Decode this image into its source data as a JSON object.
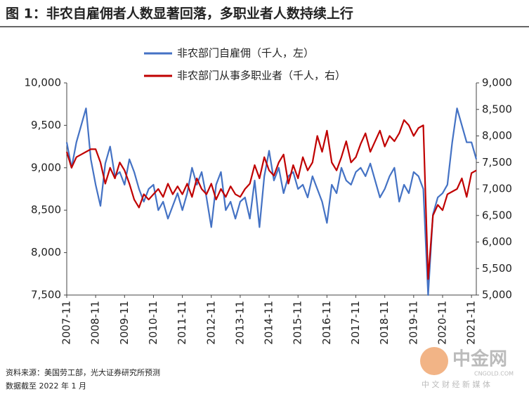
{
  "chart_data": {
    "type": "line",
    "title": "图 1：非农自雇佣者人数显著回落，多职业者人数持续上行",
    "source": "资料来源：美国劳工部，光大证券研究所预测",
    "note": "数据截至 2022 年 1 月",
    "watermark": "中金网",
    "watermark_sub": "CNGOLD.COM",
    "watermark_tag": "中 文 财 经 新 媒 体",
    "categories": [
      "2007-11",
      null,
      null,
      null,
      null,
      null,
      "2008-11",
      null,
      null,
      null,
      null,
      null,
      "2009-11",
      null,
      null,
      null,
      null,
      null,
      "2010-11",
      null,
      null,
      null,
      null,
      null,
      "2011-11",
      null,
      null,
      null,
      null,
      null,
      "2012-11",
      null,
      null,
      null,
      null,
      null,
      "2013-11",
      null,
      null,
      null,
      null,
      null,
      "2014-11",
      null,
      null,
      null,
      null,
      null,
      "2015-11",
      null,
      null,
      null,
      null,
      null,
      "2016-11",
      null,
      null,
      null,
      null,
      null,
      "2017-11",
      null,
      null,
      null,
      null,
      null,
      "2018-11",
      null,
      null,
      null,
      null,
      null,
      "2019-11",
      null,
      null,
      null,
      null,
      null,
      "2020-11",
      null,
      null,
      null,
      null,
      null,
      "2021-11",
      null
    ],
    "series": [
      {
        "name": "非农部门自雇佣（千人，左）",
        "color": "#4472c4",
        "axis": "y",
        "values": [
          9300,
          9000,
          9300,
          9500,
          9700,
          9100,
          8800,
          8550,
          9050,
          9250,
          8900,
          8950,
          8800,
          9100,
          8950,
          8750,
          8600,
          8750,
          8800,
          8500,
          8600,
          8400,
          8550,
          8700,
          8500,
          8700,
          9000,
          8800,
          8950,
          8650,
          8300,
          8800,
          8950,
          8500,
          8600,
          8400,
          8600,
          8650,
          8400,
          8850,
          8300,
          8900,
          9200,
          8850,
          9000,
          8700,
          8900,
          8950,
          8750,
          8800,
          8650,
          8900,
          8750,
          8600,
          8350,
          8800,
          8700,
          9000,
          8850,
          8800,
          8950,
          9000,
          8900,
          9050,
          8850,
          8650,
          8750,
          8900,
          9000,
          8600,
          8800,
          8700,
          8950,
          8900,
          8750,
          7500,
          8450,
          8650,
          8700,
          8800,
          9300,
          9700,
          9500,
          9300,
          9300,
          9100
        ]
      },
      {
        "name": "非农部门从事多职业者（千人，右）",
        "color": "#c00000",
        "axis": "y2",
        "values": [
          7700,
          7400,
          7600,
          7650,
          7700,
          7750,
          7750,
          7500,
          7100,
          7400,
          7200,
          7500,
          7350,
          7100,
          6800,
          6650,
          6900,
          6800,
          6900,
          7000,
          6850,
          7100,
          6900,
          7050,
          6900,
          7100,
          6850,
          7200,
          7000,
          6900,
          7100,
          6800,
          7000,
          6850,
          7050,
          6900,
          6850,
          7000,
          7100,
          7450,
          7200,
          7600,
          7350,
          7250,
          7500,
          7650,
          7100,
          7450,
          7200,
          7600,
          7350,
          7500,
          8000,
          7700,
          8100,
          7500,
          7350,
          7600,
          7900,
          7500,
          7600,
          7850,
          8050,
          7700,
          7900,
          8100,
          7800,
          8000,
          7900,
          8050,
          8300,
          8200,
          8000,
          8150,
          8200,
          5300,
          6500,
          6700,
          6600,
          6900,
          6950,
          7000,
          7200,
          6850,
          7300,
          7350
        ]
      }
    ],
    "ylim": [
      7500,
      10000
    ],
    "yticks": [
      {
        "value": 7500,
        "label": "7,500"
      },
      {
        "value": 8000,
        "label": "8,000"
      },
      {
        "value": 8500,
        "label": "8,500"
      },
      {
        "value": 9000,
        "label": "9,000"
      },
      {
        "value": 9500,
        "label": "9,500"
      },
      {
        "value": 10000,
        "label": "10,000"
      }
    ],
    "y2lim": [
      5000,
      9000
    ],
    "y2ticks": [
      {
        "value": 5000,
        "label": "5,000"
      },
      {
        "value": 5500,
        "label": "5,500"
      },
      {
        "value": 6000,
        "label": "6,000"
      },
      {
        "value": 6500,
        "label": "6,500"
      },
      {
        "value": 7000,
        "label": "7,000"
      },
      {
        "value": 7500,
        "label": "7,500"
      },
      {
        "value": 8000,
        "label": "8,000"
      },
      {
        "value": 8500,
        "label": "8,500"
      },
      {
        "value": 9000,
        "label": "9,000"
      }
    ],
    "grid": false
  }
}
